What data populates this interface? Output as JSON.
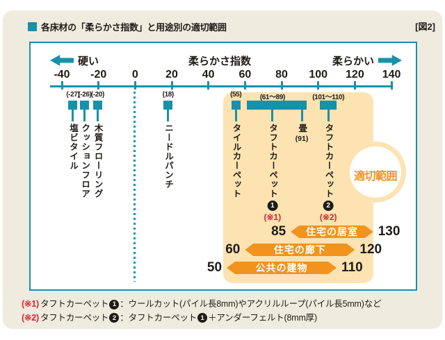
{
  "figure_tag": "[図2]",
  "title": "各床材の「柔らかさ指数」と用途別の適切範囲",
  "colors": {
    "teal": "#1791a9",
    "panel_beige": "#f0ebdf",
    "region_light_orange": "#fce3b1",
    "bar_orange": "#f1931d",
    "footnote_red": "#dd2230",
    "ink": "#1f1b17"
  },
  "axis": {
    "label_left": "硬い",
    "label_center": "柔らかさ指数",
    "label_right": "柔らかい",
    "min": -40,
    "max": 140,
    "ticks": [
      -40,
      -20,
      0,
      20,
      40,
      60,
      80,
      100,
      120,
      140
    ]
  },
  "chart_data": {
    "type": "scatter",
    "title": "各床材の「柔らかさ指数」と用途別の適切範囲",
    "xlabel": "柔らかさ指数",
    "xlim": [
      -40,
      140
    ],
    "materials": [
      {
        "name": "塩ビタイル",
        "value": -27,
        "label": "(-27)",
        "display_x": -34
      },
      {
        "name": "クッションフロア",
        "value": -26,
        "label": "(-26)",
        "display_x": -27.5
      },
      {
        "name": "木質フローリング",
        "value": -20,
        "label": "(-20)",
        "display_x": -20.5
      },
      {
        "name": "ニードルパンチ",
        "value": 18,
        "label": "(18)"
      },
      {
        "name": "タイルカーペット",
        "value": 55,
        "label": "(55)"
      },
      {
        "name": "タフトカーペット",
        "badge": "1",
        "fnref": "(※1)",
        "range": [
          61,
          89
        ],
        "label": "(61〜89)"
      },
      {
        "name": "畳",
        "value": 91,
        "sub": "(91)"
      },
      {
        "name": "タフトカーペット",
        "badge": "2",
        "fnref": "(※2)",
        "range": [
          101,
          110
        ],
        "label": "(101〜110)"
      }
    ],
    "suitable_region": {
      "label": "適切範囲",
      "from": 48,
      "to": 130
    },
    "usage_ranges": [
      {
        "name": "住宅の居室",
        "from": 85,
        "to": 130
      },
      {
        "name": "住宅の廊下",
        "from": 60,
        "to": 120
      },
      {
        "name": "公共の建物",
        "from": 50,
        "to": 110
      }
    ]
  },
  "footnotes": {
    "lines": [
      [
        {
          "red": "(※1)"
        },
        {
          "t": "タフトカーペット"
        },
        {
          "badge": "1"
        },
        {
          "t": "：ウールカット(パイル長8mm)やアクリルループ(パイル長5mm)など"
        }
      ],
      [
        {
          "red": "(※2)"
        },
        {
          "t": "タフトカーペット"
        },
        {
          "badge": "2"
        },
        {
          "t": "：タフトカーペット"
        },
        {
          "badge": "1"
        },
        {
          "t": "＋アンダーフェルト(8mm厚)"
        }
      ]
    ]
  }
}
